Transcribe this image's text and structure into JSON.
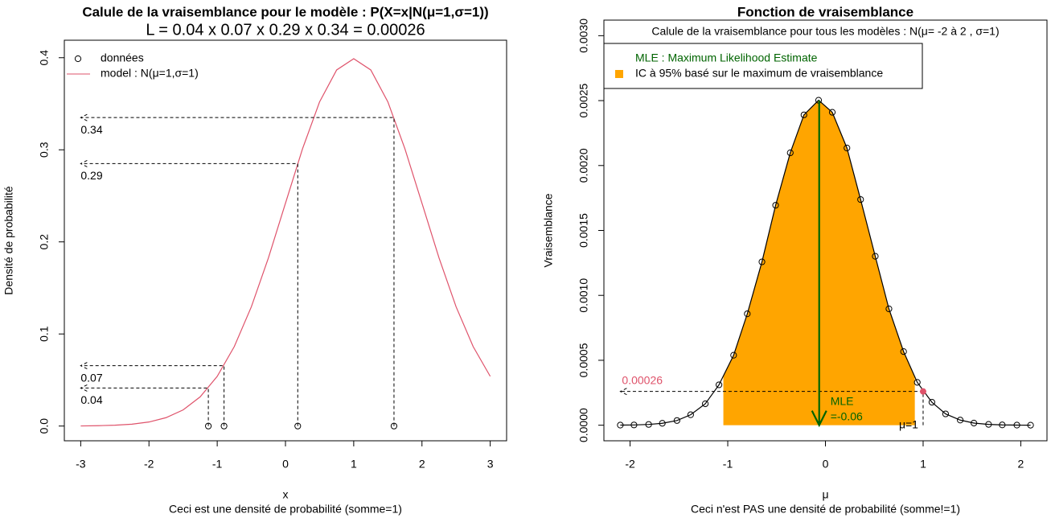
{
  "chart_data": [
    {
      "type": "line",
      "title": "Calule de la vraisemblance pour le modèle : P(X=x|N(μ=1,σ=1))",
      "subtitle": "L = 0.04 x 0.07 x 0.29 x 0.34 = 0.00026",
      "x_label": "x",
      "caption": "Ceci est une densité de probabilité (somme=1)",
      "y_label": "Densité de probabilité",
      "x": [
        -3,
        -2.75,
        -2.5,
        -2.25,
        -2,
        -1.75,
        -1.5,
        -1.25,
        -1,
        -0.75,
        -0.5,
        -0.25,
        0,
        0.25,
        0.5,
        0.75,
        1,
        1.25,
        1.5,
        1.75,
        2,
        2.25,
        2.5,
        2.75,
        3
      ],
      "series": [
        {
          "name": "model : N(μ=1,σ=1)",
          "color": "#DF536B",
          "values": [
            0.0001,
            0.0004,
            0.0009,
            0.002,
            0.0044,
            0.0091,
            0.0175,
            0.0317,
            0.054,
            0.0863,
            0.1295,
            0.1826,
            0.242,
            0.3011,
            0.3521,
            0.3867,
            0.3989,
            0.3867,
            0.3521,
            0.3011,
            0.242,
            0.1826,
            0.1295,
            0.0863,
            0.054
          ]
        }
      ],
      "observations": {
        "name": "données",
        "x": [
          -1.13,
          -0.9,
          0.18,
          1.59
        ],
        "values": [
          0,
          0,
          0,
          0
        ],
        "densities": [
          0.0413,
          0.0656,
          0.285,
          0.335
        ],
        "density_labels": [
          "0.04",
          "0.07",
          "0.29",
          "0.34"
        ]
      },
      "xlim": [
        -3.24,
        3.24
      ],
      "ylim": [
        -0.016,
        0.419
      ],
      "xticks": [
        -3,
        -2,
        -1,
        0,
        1,
        2,
        3
      ],
      "yticks": [
        {
          "value": 0,
          "label": "0.0"
        },
        0.1,
        0.2,
        0.3,
        0.4
      ],
      "legend": "top-left"
    },
    {
      "type": "line",
      "title": "Fonction de vraisemblance",
      "subtitle": "Calule de la vraisemblance pour tous les modèles : N(μ= -2 à 2 , σ=1)",
      "x_label": "μ",
      "caption": "Ceci n'est PAS une densité de probabilité (somme!=1)",
      "y_label": "Vraisemblance",
      "x": [
        -2.1,
        -1.96,
        -1.81,
        -1.67,
        -1.52,
        -1.38,
        -1.23,
        -1.09,
        -0.94,
        -0.8,
        -0.65,
        -0.51,
        -0.36,
        -0.22,
        -0.07,
        0.07,
        0.22,
        0.36,
        0.51,
        0.65,
        0.8,
        0.94,
        1.09,
        1.23,
        1.38,
        1.52,
        1.67,
        1.81,
        1.96,
        2.1
      ],
      "series": [
        {
          "color": "#000000",
          "values": [
            6e-07,
            2e-06,
            5.7e-06,
            1.49e-05,
            3.61e-05,
            8.05e-05,
            0.000165,
            0.000311,
            0.000539,
            0.000858,
            0.001258,
            0.001694,
            0.002098,
            0.00239,
            0.002503,
            0.00241,
            0.002135,
            0.001738,
            0.001301,
            0.000896,
            0.000567,
            0.00033,
            0.000177,
            8.7e-05,
            3.94e-05,
            1.64e-05,
            6.3e-06,
            2.2e-06,
            7e-07,
            2e-07
          ]
        }
      ],
      "ci": {
        "name": "IC à 95% basé sur le maximum de vraisemblance",
        "color": "#FFA500",
        "x": [
          -1.045,
          0.915
        ]
      },
      "mle": {
        "name": "MLE : Maximum Likelihood Estimate",
        "label": "MLE",
        "value": -0.064,
        "value_label": "=-0.06",
        "color": "#006400"
      },
      "reference": {
        "x": 1,
        "value": 0.00026,
        "label": "μ=1",
        "color": "#DF536B"
      },
      "xlim": [
        -2.268,
        2.268
      ],
      "ylim": [
        -0.00012,
        0.00312
      ],
      "xticks": [
        -2,
        -1,
        0,
        1,
        2
      ],
      "yticks": [
        {
          "value": 0,
          "label": "0.0000"
        },
        {
          "value": 0.0005,
          "label": "0.0005"
        },
        {
          "value": 0.001,
          "label": "0.0010"
        },
        {
          "value": 0.0015,
          "label": "0.0015"
        },
        {
          "value": 0.002,
          "label": "0.0020"
        },
        {
          "value": 0.0025,
          "label": "0.0025"
        },
        {
          "value": 0.003,
          "label": "0.0030"
        }
      ],
      "legend": "top-left"
    }
  ]
}
